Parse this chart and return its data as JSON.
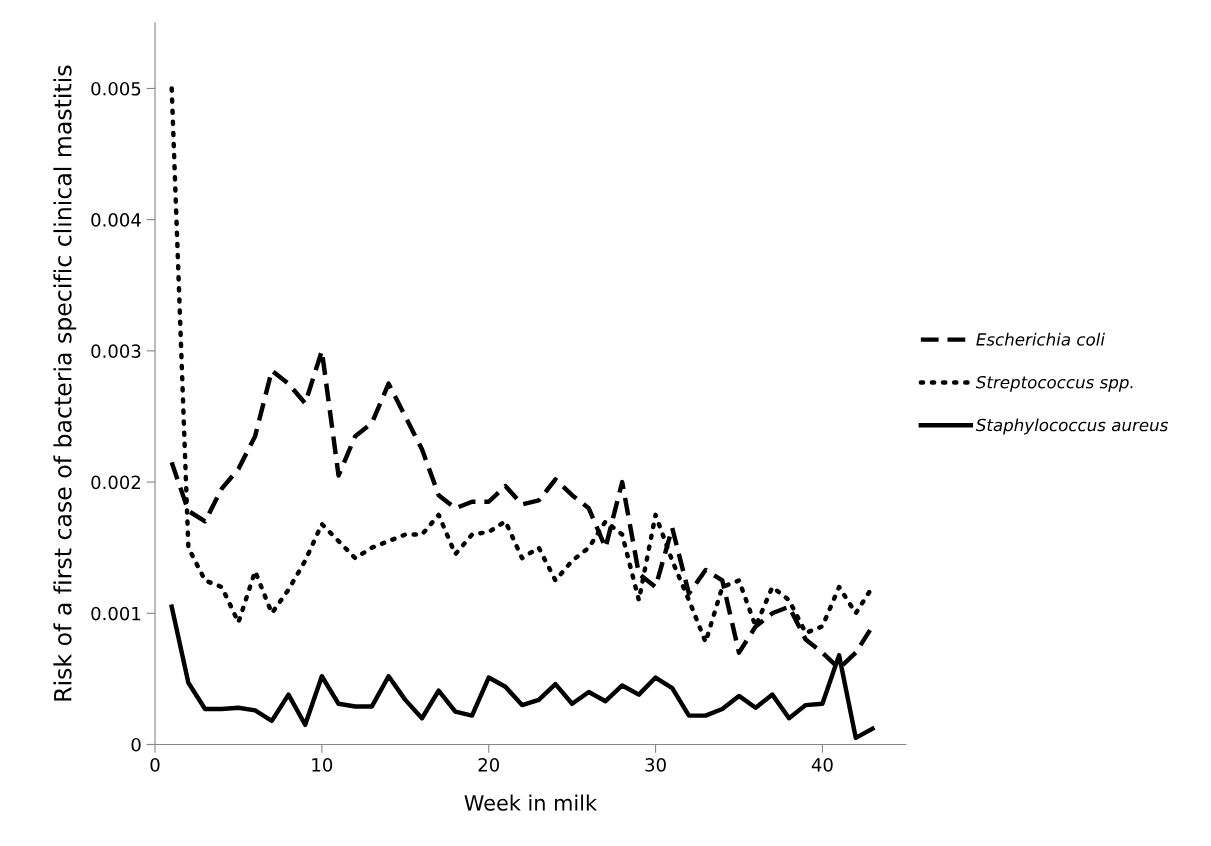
{
  "chart_data": {
    "type": "line",
    "xlabel": "Week in milk",
    "ylabel": "Risk of a first case of bacteria specific clinical mastitis",
    "x": [
      1,
      2,
      3,
      4,
      5,
      6,
      7,
      8,
      9,
      10,
      11,
      12,
      13,
      14,
      15,
      16,
      17,
      18,
      19,
      20,
      21,
      22,
      23,
      24,
      25,
      26,
      27,
      28,
      29,
      30,
      31,
      32,
      33,
      34,
      35,
      36,
      37,
      38,
      39,
      40,
      41,
      42,
      43
    ],
    "series": [
      {
        "name": "Escherichia coli",
        "color": "#000000",
        "line_style": "dashed",
        "values": [
          0.00215,
          0.00178,
          0.0017,
          0.00195,
          0.0021,
          0.00235,
          0.00285,
          0.00275,
          0.0026,
          0.003,
          0.00205,
          0.00235,
          0.00245,
          0.00275,
          0.0025,
          0.00225,
          0.0019,
          0.0018,
          0.00185,
          0.00185,
          0.00197,
          0.00183,
          0.00186,
          0.00202,
          0.0019,
          0.0018,
          0.0015,
          0.002,
          0.0013,
          0.0012,
          0.00165,
          0.00115,
          0.00133,
          0.00125,
          0.0007,
          0.0009,
          0.001,
          0.00105,
          0.0008,
          0.0007,
          0.00058,
          0.0007,
          0.0009
        ]
      },
      {
        "name": "Streptococcus spp.",
        "color": "#000000",
        "line_style": "dotted",
        "values": [
          0.005,
          0.0015,
          0.00125,
          0.0012,
          0.00093,
          0.00132,
          0.001,
          0.00118,
          0.0014,
          0.00168,
          0.00155,
          0.00142,
          0.0015,
          0.00155,
          0.0016,
          0.0016,
          0.00175,
          0.00145,
          0.0016,
          0.00162,
          0.0017,
          0.00142,
          0.0015,
          0.00125,
          0.0014,
          0.0015,
          0.0017,
          0.0016,
          0.0011,
          0.00175,
          0.0014,
          0.0011,
          0.00078,
          0.0012,
          0.00125,
          0.0009,
          0.0012,
          0.0011,
          0.00085,
          0.0009,
          0.0012,
          0.001,
          0.0012
        ]
      },
      {
        "name": "Staphylococcus aureus",
        "color": "#000000",
        "line_style": "solid",
        "values": [
          0.00105,
          0.00047,
          0.00027,
          0.00027,
          0.00028,
          0.00026,
          0.00018,
          0.00038,
          0.00015,
          0.00052,
          0.00031,
          0.00029,
          0.00029,
          0.00052,
          0.00034,
          0.0002,
          0.00041,
          0.00025,
          0.00022,
          0.00051,
          0.00044,
          0.0003,
          0.00034,
          0.00046,
          0.00031,
          0.0004,
          0.00033,
          0.00045,
          0.00038,
          0.00051,
          0.00043,
          0.00022,
          0.00022,
          0.00027,
          0.00037,
          0.00028,
          0.00038,
          0.0002,
          0.0003,
          0.00031,
          0.00068,
          5e-05,
          0.00012
        ]
      }
    ],
    "xlim": [
      0,
      45
    ],
    "xticks": [
      0,
      10,
      20,
      30,
      40
    ],
    "ylim": [
      0,
      0.0055
    ],
    "yticks": [
      0,
      0.001,
      0.002,
      0.003,
      0.004,
      0.005
    ],
    "grid": false,
    "legend": "right",
    "marker": "none"
  }
}
